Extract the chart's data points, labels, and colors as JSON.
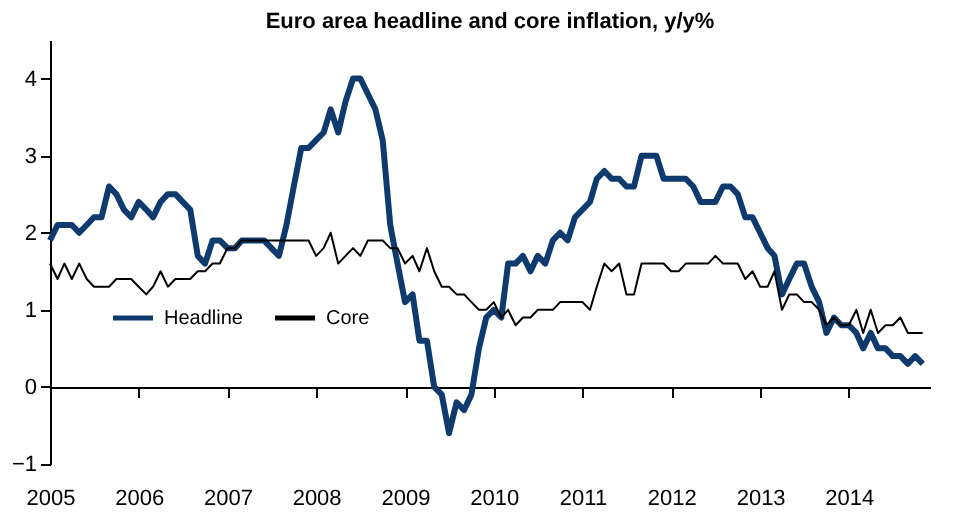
{
  "chart_data": {
    "type": "line",
    "title": "Euro area headline and core inflation, y/y%",
    "x": [
      "2005-01",
      "2005-02",
      "2005-03",
      "2005-04",
      "2005-05",
      "2005-06",
      "2005-07",
      "2005-08",
      "2005-09",
      "2005-10",
      "2005-11",
      "2005-12",
      "2006-01",
      "2006-02",
      "2006-03",
      "2006-04",
      "2006-05",
      "2006-06",
      "2006-07",
      "2006-08",
      "2006-09",
      "2006-10",
      "2006-11",
      "2006-12",
      "2007-01",
      "2007-02",
      "2007-03",
      "2007-04",
      "2007-05",
      "2007-06",
      "2007-07",
      "2007-08",
      "2007-09",
      "2007-10",
      "2007-11",
      "2007-12",
      "2008-01",
      "2008-02",
      "2008-03",
      "2008-04",
      "2008-05",
      "2008-06",
      "2008-07",
      "2008-08",
      "2008-09",
      "2008-10",
      "2008-11",
      "2008-12",
      "2009-01",
      "2009-02",
      "2009-03",
      "2009-04",
      "2009-05",
      "2009-06",
      "2009-07",
      "2009-08",
      "2009-09",
      "2009-10",
      "2009-11",
      "2009-12",
      "2010-01",
      "2010-02",
      "2010-03",
      "2010-04",
      "2010-05",
      "2010-06",
      "2010-07",
      "2010-08",
      "2010-09",
      "2010-10",
      "2010-11",
      "2010-12",
      "2011-01",
      "2011-02",
      "2011-03",
      "2011-04",
      "2011-05",
      "2011-06",
      "2011-07",
      "2011-08",
      "2011-09",
      "2011-10",
      "2011-11",
      "2011-12",
      "2012-01",
      "2012-02",
      "2012-03",
      "2012-04",
      "2012-05",
      "2012-06",
      "2012-07",
      "2012-08",
      "2012-09",
      "2012-10",
      "2012-11",
      "2012-12",
      "2013-01",
      "2013-02",
      "2013-03",
      "2013-04",
      "2013-05",
      "2013-06",
      "2013-07",
      "2013-08",
      "2013-09",
      "2013-10",
      "2013-11",
      "2013-12",
      "2014-01",
      "2014-02",
      "2014-03",
      "2014-04",
      "2014-05",
      "2014-06",
      "2014-07",
      "2014-08",
      "2014-09",
      "2014-10",
      "2014-11"
    ],
    "series": [
      {
        "name": "Headline",
        "color": "#0e3a6e",
        "values": [
          1.9,
          2.1,
          2.1,
          2.1,
          2.0,
          2.1,
          2.2,
          2.2,
          2.6,
          2.5,
          2.3,
          2.2,
          2.4,
          2.3,
          2.2,
          2.4,
          2.5,
          2.5,
          2.4,
          2.3,
          1.7,
          1.6,
          1.9,
          1.9,
          1.8,
          1.8,
          1.9,
          1.9,
          1.9,
          1.9,
          1.8,
          1.7,
          2.1,
          2.6,
          3.1,
          3.1,
          3.2,
          3.3,
          3.6,
          3.3,
          3.7,
          4.0,
          4.0,
          3.8,
          3.6,
          3.2,
          2.1,
          1.6,
          1.1,
          1.2,
          0.6,
          0.6,
          0.0,
          -0.1,
          -0.6,
          -0.2,
          -0.3,
          -0.1,
          0.5,
          0.9,
          1.0,
          0.9,
          1.6,
          1.6,
          1.7,
          1.5,
          1.7,
          1.6,
          1.9,
          2.0,
          1.9,
          2.2,
          2.3,
          2.4,
          2.7,
          2.8,
          2.7,
          2.7,
          2.6,
          2.6,
          3.0,
          3.0,
          3.0,
          2.7,
          2.7,
          2.7,
          2.7,
          2.6,
          2.4,
          2.4,
          2.4,
          2.6,
          2.6,
          2.5,
          2.2,
          2.2,
          2.0,
          1.8,
          1.7,
          1.2,
          1.4,
          1.6,
          1.6,
          1.3,
          1.1,
          0.7,
          0.9,
          0.8,
          0.8,
          0.7,
          0.5,
          0.7,
          0.5,
          0.5,
          0.4,
          0.4,
          0.3,
          0.4,
          0.3
        ]
      },
      {
        "name": "Core",
        "color": "#000000",
        "values": [
          1.6,
          1.4,
          1.6,
          1.4,
          1.6,
          1.4,
          1.3,
          1.3,
          1.3,
          1.4,
          1.4,
          1.4,
          1.3,
          1.2,
          1.3,
          1.5,
          1.3,
          1.4,
          1.4,
          1.4,
          1.5,
          1.5,
          1.6,
          1.6,
          1.8,
          1.8,
          1.9,
          1.9,
          1.9,
          1.9,
          1.9,
          1.9,
          1.9,
          1.9,
          1.9,
          1.9,
          1.7,
          1.8,
          2.0,
          1.6,
          1.7,
          1.8,
          1.7,
          1.9,
          1.9,
          1.9,
          1.8,
          1.8,
          1.6,
          1.7,
          1.5,
          1.8,
          1.5,
          1.3,
          1.3,
          1.2,
          1.2,
          1.1,
          1.0,
          1.0,
          1.1,
          0.9,
          1.0,
          0.8,
          0.9,
          0.9,
          1.0,
          1.0,
          1.0,
          1.1,
          1.1,
          1.1,
          1.1,
          1.0,
          1.3,
          1.6,
          1.5,
          1.6,
          1.2,
          1.2,
          1.6,
          1.6,
          1.6,
          1.6,
          1.5,
          1.5,
          1.6,
          1.6,
          1.6,
          1.6,
          1.7,
          1.6,
          1.6,
          1.6,
          1.4,
          1.5,
          1.3,
          1.3,
          1.5,
          1.0,
          1.2,
          1.2,
          1.1,
          1.1,
          1.0,
          0.8,
          0.9,
          0.8,
          0.8,
          1.0,
          0.7,
          1.0,
          0.7,
          0.8,
          0.8,
          0.9,
          0.7,
          0.7,
          0.7
        ]
      }
    ],
    "xlim": [
      "2005",
      "2014-12"
    ],
    "xticks": [
      "2005",
      "2006",
      "2007",
      "2008",
      "2009",
      "2010",
      "2011",
      "2012",
      "2013",
      "2014"
    ],
    "ylim": [
      -1,
      4.5
    ],
    "yticks": [
      -1,
      0,
      1,
      2,
      3,
      4
    ],
    "legend": "left",
    "marker": "none",
    "line_style": "solid"
  }
}
